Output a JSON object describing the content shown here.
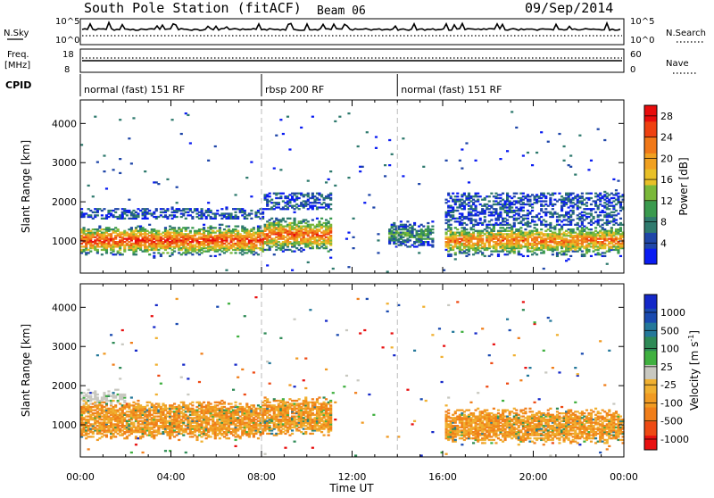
{
  "header": {
    "station": "South Pole Station (fitACF)",
    "beam": "Beam 06",
    "date": "09/Sep/2014"
  },
  "small_panels": {
    "nsky_label": "N.Sky",
    "nsearch_label": "N.Search",
    "freq_label_1": "Freq.",
    "freq_label_2": "[MHz]",
    "nave_label": "Nave",
    "cpid_label": "CPID",
    "nsky_ticks": [
      "10^5",
      "10^0"
    ],
    "nsearch_ticks": [
      "10^5",
      "10^0"
    ],
    "freq_ticks": [
      "18",
      "8"
    ],
    "nave_ticks": [
      "60",
      "0"
    ]
  },
  "cpid_segments": [
    {
      "label": "normal (fast) 151 RF",
      "start_h": 0,
      "end_h": 8
    },
    {
      "label": "rbsp 200 RF",
      "start_h": 8,
      "end_h": 14
    },
    {
      "label": "normal (fast) 151 RF",
      "start_h": 14,
      "end_h": 24
    }
  ],
  "colors": {
    "power_scale": [
      "#0a1cf2",
      "#1f46a8",
      "#2f7a6e",
      "#3a9a4e",
      "#7ab83a",
      "#e8c028",
      "#f0a020",
      "#f07818",
      "#ee4010",
      "#e80c0c"
    ],
    "velocity_scale": [
      "#e81010",
      "#ee4a14",
      "#f07e1a",
      "#f09a22",
      "#f0b030",
      "#c8c8c0",
      "#40b040",
      "#2e8a56",
      "#24789a",
      "#1a4ab0",
      "#1428c8"
    ]
  },
  "chart_data": [
    {
      "type": "heatmap",
      "name": "power",
      "xlabel": "Time UT",
      "ylabel": "Slant Range [km]",
      "x_ticks": [
        "00:00",
        "04:00",
        "08:00",
        "12:00",
        "16:00",
        "20:00",
        "00:00"
      ],
      "y_ticks": [
        1000,
        2000,
        3000,
        4000
      ],
      "xlim": [
        0,
        24
      ],
      "ylim": [
        180,
        4600
      ],
      "colorbar": {
        "label": "Power [dB]",
        "ticks": [
          4,
          8,
          12,
          16,
          20,
          24,
          28
        ],
        "range": [
          0,
          30
        ]
      },
      "features": [
        {
          "from_h": 0,
          "to_h": 8,
          "main_band_km": [
            700,
            1300
          ],
          "upper_band_km": [
            1550,
            1800
          ],
          "peak_dB": 28
        },
        {
          "from_h": 8,
          "to_h": 11,
          "main_band_km": [
            800,
            1500
          ],
          "upper_band_km": [
            1800,
            2200
          ],
          "peak_dB": 26
        },
        {
          "from_h": 13.5,
          "to_h": 15.5,
          "main_band_km": [
            900,
            1400
          ],
          "peak_dB": 10
        },
        {
          "from_h": 16,
          "to_h": 24,
          "main_band_km": [
            700,
            1300
          ],
          "upper_band_km": [
            1400,
            2200
          ],
          "peak_dB": 24
        }
      ]
    },
    {
      "type": "heatmap",
      "name": "velocity",
      "xlabel": "Time UT",
      "ylabel": "Slant Range [km]",
      "x_ticks": [
        "00:00",
        "04:00",
        "08:00",
        "12:00",
        "16:00",
        "20:00",
        "00:00"
      ],
      "y_ticks": [
        1000,
        2000,
        3000,
        4000
      ],
      "xlim": [
        0,
        24
      ],
      "ylim": [
        180,
        4600
      ],
      "colorbar": {
        "label": "Velocity [m s^-1]",
        "ticks": [
          1000,
          500,
          100,
          25,
          -25,
          -100,
          -500,
          -1000
        ]
      },
      "features": [
        {
          "from_h": 0,
          "to_h": 2,
          "range_km": [
            1600,
            1800
          ],
          "velocity_ms": 0
        },
        {
          "from_h": 0,
          "to_h": 8,
          "range_km": [
            700,
            1500
          ],
          "velocity_ms": -300
        },
        {
          "from_h": 8,
          "to_h": 11,
          "range_km": [
            800,
            1600
          ],
          "velocity_ms": -400
        },
        {
          "from_h": 16,
          "to_h": 24,
          "range_km": [
            600,
            1300
          ],
          "velocity_ms": -200
        }
      ]
    }
  ]
}
